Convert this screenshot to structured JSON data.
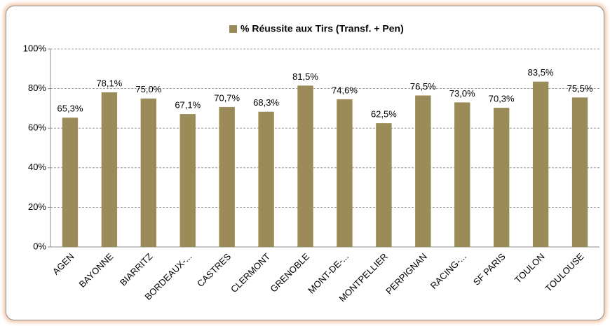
{
  "chart_data": {
    "type": "bar",
    "categories": [
      "AGEN",
      "BAYONNE",
      "BIARRITZ",
      "BORDEAUX-...",
      "CASTRES",
      "CLERMONT",
      "GRENOBLE",
      "MONT-DE-...",
      "MONTPELLIER",
      "PERPIGNAN",
      "RACING-...",
      "SF PARIS",
      "TOULON",
      "TOULOUSE"
    ],
    "series": [
      {
        "name": "% Réussite aux Tirs (Transf. + Pen)",
        "color": "#9a8b59",
        "values": [
          65.3,
          78.1,
          75.0,
          67.1,
          70.7,
          68.3,
          81.5,
          74.6,
          62.5,
          76.5,
          73.0,
          70.3,
          83.5,
          75.5
        ],
        "value_labels": [
          "65,3%",
          "78,1%",
          "75,0%",
          "67,1%",
          "70,7%",
          "68,3%",
          "81,5%",
          "74,6%",
          "62,5%",
          "76,5%",
          "73,0%",
          "70,3%",
          "83,5%",
          "75,5%"
        ]
      }
    ],
    "ylim": [
      0,
      100
    ],
    "yticks": [
      {
        "value": 0,
        "label": "0%"
      },
      {
        "value": 20,
        "label": "20%"
      },
      {
        "value": 40,
        "label": "40%"
      },
      {
        "value": 60,
        "label": "60%"
      },
      {
        "value": 80,
        "label": "80%"
      },
      {
        "value": 100,
        "label": "100%"
      }
    ],
    "grid": true,
    "legend": "top"
  }
}
